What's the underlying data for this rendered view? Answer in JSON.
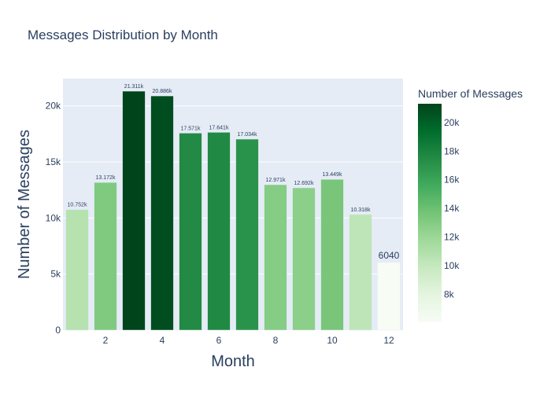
{
  "chart_data": {
    "type": "bar",
    "title": "Messages Distribution by Month",
    "xlabel": "Month",
    "ylabel": "Number of Messages",
    "x": [
      1,
      2,
      3,
      4,
      5,
      6,
      7,
      8,
      9,
      10,
      11,
      12
    ],
    "values": [
      10752,
      13172,
      21311,
      20886,
      17571,
      17641,
      17034,
      12971,
      12692,
      13449,
      10318,
      6040
    ],
    "data_labels": [
      "10.752k",
      "13.172k",
      "21.311k",
      "20.886k",
      "17.571k",
      "17.641k",
      "17.034k",
      "12.971k",
      "12.692k",
      "13.449k",
      "10.318k",
      "6040"
    ],
    "xlim": [
      0.5,
      12.5
    ],
    "ylim": [
      0,
      22433
    ],
    "x_ticks": [
      {
        "v": 2,
        "label": "2"
      },
      {
        "v": 4,
        "label": "4"
      },
      {
        "v": 6,
        "label": "6"
      },
      {
        "v": 8,
        "label": "8"
      },
      {
        "v": 10,
        "label": "10"
      },
      {
        "v": 12,
        "label": "12"
      }
    ],
    "y_ticks": [
      {
        "v": 0,
        "label": "0"
      },
      {
        "v": 5000,
        "label": "5k"
      },
      {
        "v": 10000,
        "label": "10k"
      },
      {
        "v": 15000,
        "label": "15k"
      },
      {
        "v": 20000,
        "label": "20k"
      }
    ],
    "grid": true,
    "colorscale": "Greens",
    "colorbar": {
      "title": "Number of Messages",
      "min": 6040,
      "max": 21311,
      "ticks": [
        {
          "v": 8000,
          "label": "8k"
        },
        {
          "v": 10000,
          "label": "10k"
        },
        {
          "v": 12000,
          "label": "12k"
        },
        {
          "v": 14000,
          "label": "14k"
        },
        {
          "v": 16000,
          "label": "16k"
        },
        {
          "v": 18000,
          "label": "18k"
        },
        {
          "v": 20000,
          "label": "20k"
        }
      ]
    },
    "colors": {
      "plot_bg": "#e5ecf6",
      "grid": "#ffffff",
      "text": "#2a3f5f",
      "scale": [
        "#f7fcf5",
        "#e5f5e0",
        "#c7e9c0",
        "#a1d99b",
        "#74c476",
        "#41ab5d",
        "#238b45",
        "#006d2c",
        "#00441b"
      ]
    }
  }
}
